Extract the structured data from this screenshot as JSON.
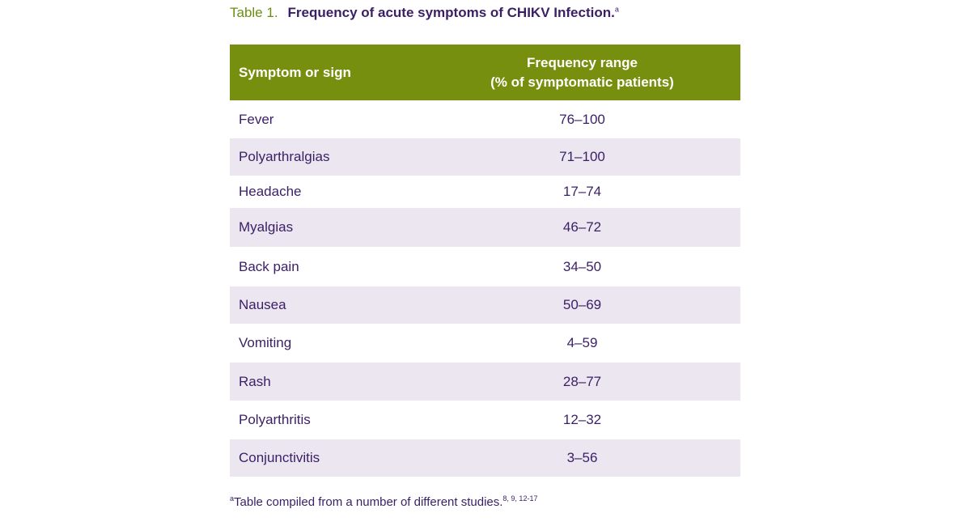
{
  "caption": {
    "label": "Table 1.",
    "title": "Frequency of acute symptoms of CHIKV Infection.",
    "title_sup": "a"
  },
  "table": {
    "headers": {
      "symptom": "Symptom or sign",
      "frequency_line1": "Frequency range",
      "frequency_line2": "(% of symptomatic patients)"
    },
    "rows": [
      {
        "symptom": "Fever",
        "range": "76–100"
      },
      {
        "symptom": "Polyarthralgias",
        "range": "71–100"
      },
      {
        "symptom": "Headache",
        "range": "17–74"
      },
      {
        "symptom": "Myalgias",
        "range": "46–72"
      },
      {
        "symptom": "Back pain",
        "range": "34–50"
      },
      {
        "symptom": "Nausea",
        "range": "50–69"
      },
      {
        "symptom": "Vomiting",
        "range": "4–59"
      },
      {
        "symptom": "Rash",
        "range": "28–77"
      },
      {
        "symptom": "Polyarthritis",
        "range": "12–32"
      },
      {
        "symptom": "Conjunctivitis",
        "range": "3–56"
      }
    ]
  },
  "footnote": {
    "marker": "a",
    "text": "Table compiled from a number of different studies.",
    "refs": "8, 9, 12-17"
  },
  "colors": {
    "header_bg": "#778f0e",
    "label_green": "#6a8f10",
    "text_purple": "#3a1f66",
    "alt_row_bg": "#ebe6ef"
  }
}
